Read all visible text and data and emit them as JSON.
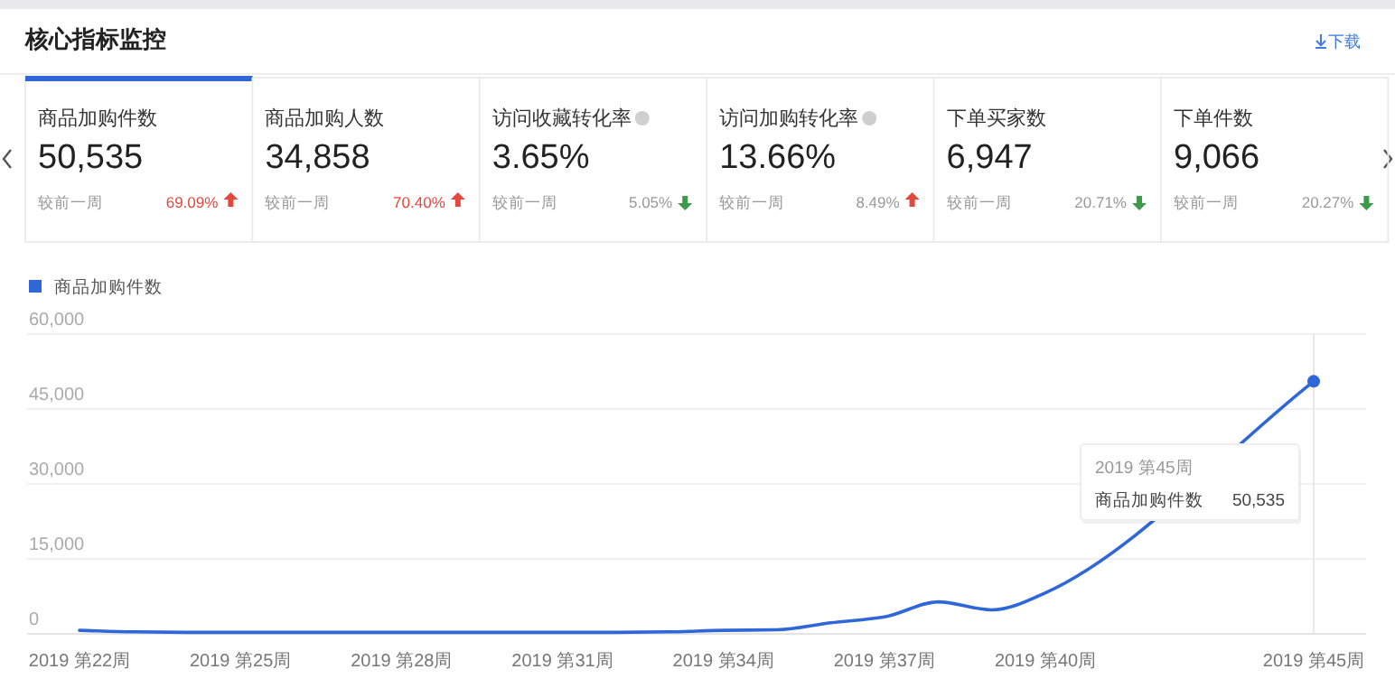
{
  "chart_data": [
    {
      "type": "other",
      "title": "核心指标监控",
      "annotations": [
        "下载",
        "较前一周"
      ],
      "categories": [
        "商品加购件数",
        "商品加购人数",
        "访问收藏转化率",
        "访问加购转化率",
        "下单买家数",
        "下单件数"
      ],
      "series": [
        {
          "values": [
            50535,
            34858,
            3.65,
            13.66,
            6947,
            9066
          ],
          "value_labels": [
            "50,535",
            "34,858",
            "3.65%",
            "13.66%",
            "6,947",
            "9,066"
          ],
          "color": "#222222"
        },
        {
          "values": [
            69.09,
            70.4,
            null,
            8.49,
            null,
            null
          ],
          "value_labels": [
            "69.09%",
            "70.40%",
            null,
            "8.49%",
            null,
            null
          ],
          "color": "#e4473c",
          "colors": [
            "#e4473c",
            "#e4473c",
            null,
            "#999999",
            null,
            null
          ]
        },
        {
          "values": [
            null,
            null,
            5.05,
            null,
            20.71,
            20.27
          ],
          "value_labels": [
            null,
            null,
            "5.05%",
            null,
            "20.71%",
            "20.27%"
          ],
          "color": "#3c9a4a",
          "colors": [
            null,
            null,
            "#999999",
            null,
            "#999999",
            "#999999"
          ]
        }
      ]
    },
    {
      "type": "line",
      "categories": [
        "2019 第22周",
        null,
        null,
        "2019 第25周",
        null,
        null,
        "2019 第28周",
        null,
        null,
        "2019 第31周",
        null,
        null,
        "2019 第34周",
        null,
        null,
        "2019 第37周",
        null,
        null,
        "2019 第40周",
        null,
        null,
        null,
        null,
        "2019 第45周"
      ],
      "series": [
        {
          "name": "商品加购件数",
          "color": "#2f67d8",
          "values": [
            700,
            400,
            300,
            300,
            300,
            300,
            300,
            300,
            300,
            300,
            300,
            400,
            700,
            800,
            2200,
            3400,
            6400,
            4800,
            8200,
            null,
            null,
            null,
            null,
            50535
          ]
        }
      ],
      "ylim": [
        0,
        60000
      ],
      "yticks": [
        {
          "value": 0,
          "label": "0"
        },
        {
          "value": 15000,
          "label": "15,000"
        },
        {
          "value": 30000,
          "label": "30,000"
        },
        {
          "value": 45000,
          "label": "45,000"
        },
        {
          "value": 60000,
          "label": "60,000"
        }
      ],
      "grid": "y",
      "legend": "top left",
      "ref_lines": [
        {
          "axis": "x",
          "value": "2019 第45周",
          "color": "#e8e8e8"
        }
      ],
      "annotations": [
        "2019 第45周",
        "商品加购件数",
        "50,535"
      ]
    }
  ]
}
